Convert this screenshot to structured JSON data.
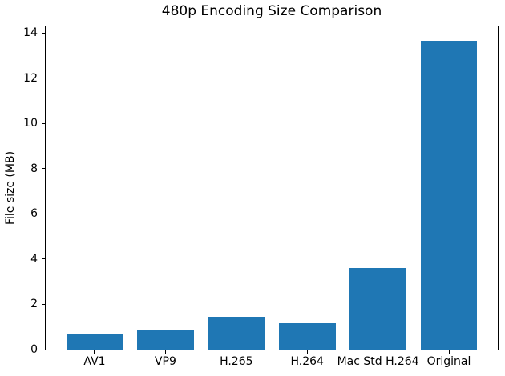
{
  "chart_data": {
    "type": "bar",
    "title": "480p Encoding Size Comparison",
    "xlabel": "",
    "ylabel": "File size (MB)",
    "categories": [
      "AV1",
      "VP9",
      "H.265",
      "H.264",
      "Mac Std H.264",
      "Original"
    ],
    "values": [
      0.67,
      0.9,
      1.45,
      1.16,
      3.62,
      13.65
    ],
    "ylim": [
      0,
      14.3
    ],
    "yticks": [
      0,
      2,
      4,
      6,
      8,
      10,
      12,
      14
    ],
    "bar_color": "#1f77b4",
    "bar_width_fraction": 0.8,
    "grid": false,
    "legend": false,
    "plot_background": "#ffffff"
  }
}
